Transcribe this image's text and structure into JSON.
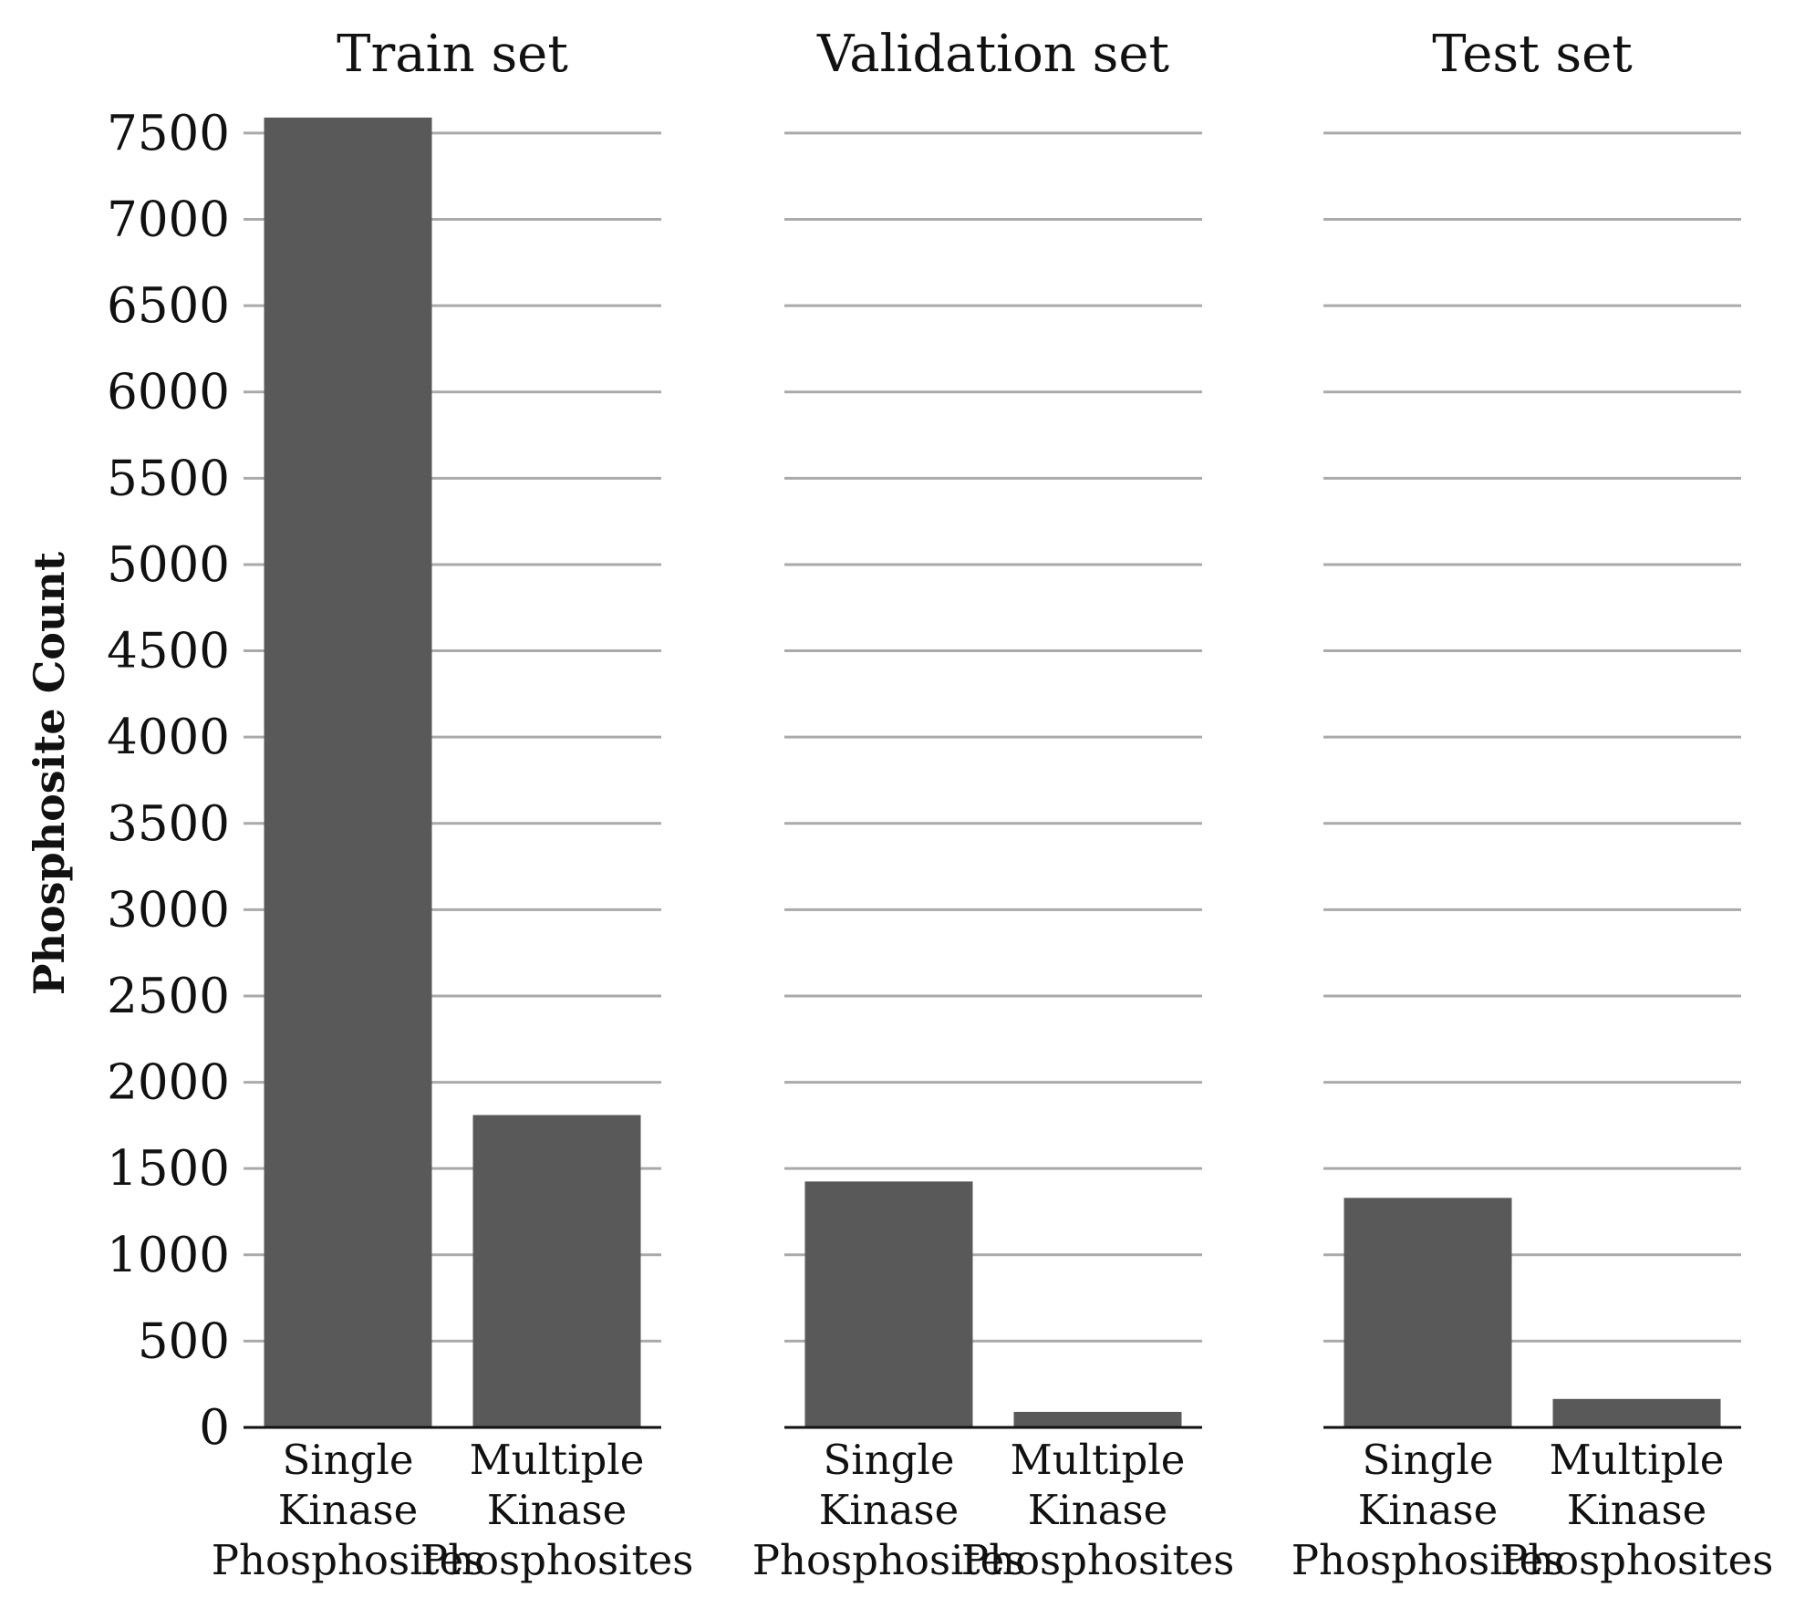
{
  "chart_data": [
    {
      "type": "bar",
      "title": "Train set",
      "categories": [
        [
          "Single",
          "Kinase",
          "Phosphosites"
        ],
        [
          "Multiple",
          "Kinase",
          "Phosphosites"
        ]
      ],
      "values": [
        7590,
        1810
      ],
      "ylabel": "Phosphosite Count",
      "ylim": [
        0,
        7600
      ],
      "yticks": [
        0,
        500,
        1000,
        1500,
        2000,
        2500,
        3000,
        3500,
        4000,
        4500,
        5000,
        5500,
        6000,
        6500,
        7000,
        7500
      ],
      "grid": true,
      "bar_color": "#595959"
    },
    {
      "type": "bar",
      "title": "Validation set",
      "categories": [
        [
          "Single",
          "Kinase",
          "Phosphosites"
        ],
        [
          "Multiple",
          "Kinase",
          "Phosphosites"
        ]
      ],
      "values": [
        1425,
        90
      ],
      "ylim": [
        0,
        7600
      ],
      "yticks": [
        0,
        500,
        1000,
        1500,
        2000,
        2500,
        3000,
        3500,
        4000,
        4500,
        5000,
        5500,
        6000,
        6500,
        7000,
        7500
      ],
      "grid": true,
      "bar_color": "#595959"
    },
    {
      "type": "bar",
      "title": "Test set",
      "categories": [
        [
          "Single",
          "Kinase",
          "Phosphosites"
        ],
        [
          "Multiple",
          "Kinase",
          "Phosphosites"
        ]
      ],
      "values": [
        1330,
        165
      ],
      "ylim": [
        0,
        7600
      ],
      "yticks": [
        0,
        500,
        1000,
        1500,
        2000,
        2500,
        3000,
        3500,
        4000,
        4500,
        5000,
        5500,
        6000,
        6500,
        7000,
        7500
      ],
      "grid": true,
      "bar_color": "#595959"
    }
  ],
  "colors": {
    "bar": "#595959",
    "grid": "#aaaaaa",
    "axis": "#111111"
  }
}
